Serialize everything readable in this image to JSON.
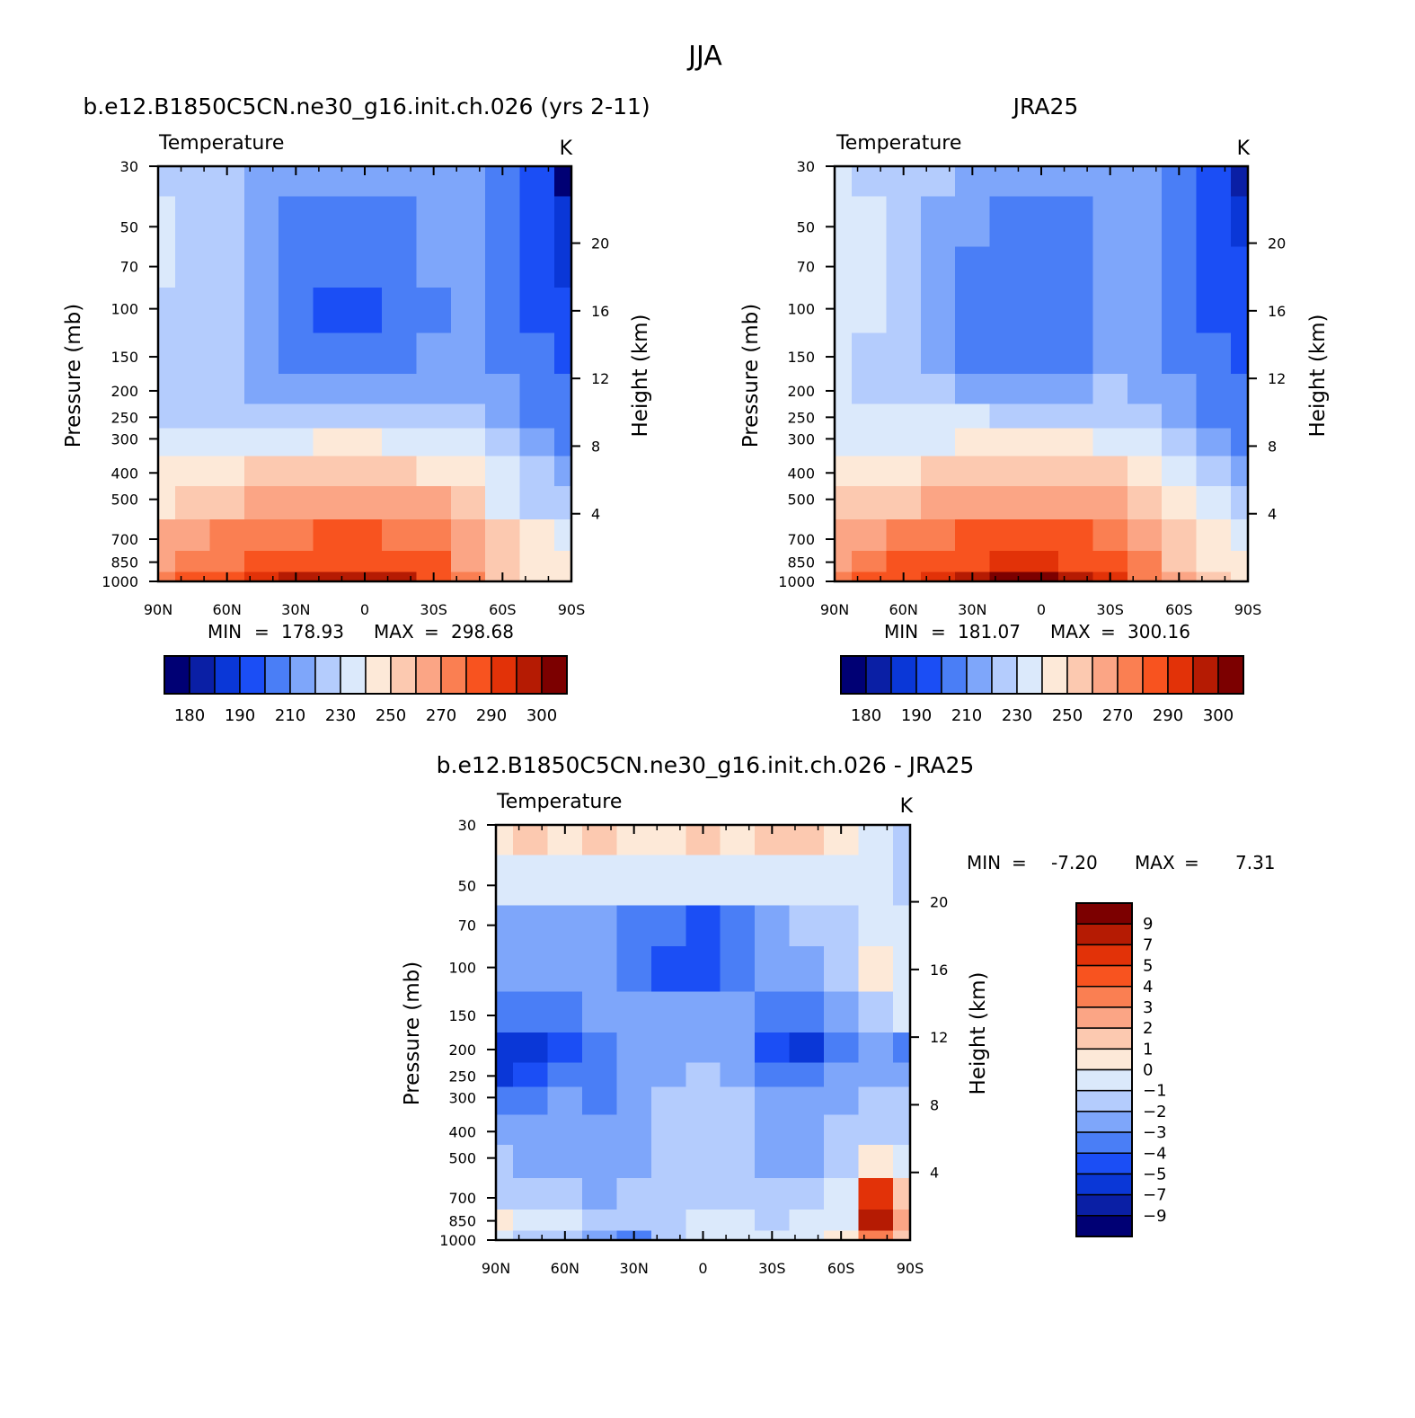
{
  "title": "JJA",
  "colors": {
    "temperature_scale": [
      "#000074",
      "#0a1fa5",
      "#0a37d7",
      "#1b4ef5",
      "#4a7ef6",
      "#7ea6fa",
      "#b4ccfd",
      "#dbe9fb",
      "#fde9d8",
      "#fcc9b0",
      "#fba585",
      "#fa7f52",
      "#f8531f",
      "#e23208",
      "#b51b03",
      "#7c0000"
    ],
    "difference_scale": [
      "#000074",
      "#0a1fa5",
      "#0a37d7",
      "#1b4ef5",
      "#4a7ef6",
      "#7ea6fa",
      "#b4ccfd",
      "#dbe9fb",
      "#fde9d8",
      "#fcc9b0",
      "#fba585",
      "#fa7f52",
      "#f8531f",
      "#e23208",
      "#b51b03",
      "#7c0000"
    ]
  },
  "panels": [
    {
      "id": "model",
      "subtitle": "b.e12.B1850C5CN.ne30_g16.init.ch.026 (yrs 2-11)",
      "left_label": "Temperature",
      "right_label": "K",
      "ylabel": "Pressure (mb)",
      "y2label": "Height (km)",
      "stats": {
        "min_label": "MIN",
        "min": "178.93",
        "max_label": "MAX",
        "max": "298.68"
      }
    },
    {
      "id": "obs",
      "subtitle": "JRA25",
      "left_label": "Temperature",
      "right_label": "K",
      "ylabel": "Pressure (mb)",
      "y2label": "Height (km)",
      "stats": {
        "min_label": "MIN",
        "min": "181.07",
        "max_label": "MAX",
        "max": "300.16"
      }
    },
    {
      "id": "diff",
      "subtitle": "b.e12.B1850C5CN.ne30_g16.init.ch.026 - JRA25",
      "left_label": "Temperature",
      "right_label": "K",
      "ylabel": "Pressure (mb)",
      "y2label": "Height (km)",
      "stats": {
        "min_label": "MIN",
        "min": "-7.20",
        "max_label": "MAX",
        "max": "7.31"
      }
    }
  ],
  "chart_data": [
    {
      "type": "heatmap",
      "title": "b.e12.B1850C5CN.ne30_g16.init.ch.026 (yrs 2-11)",
      "variable": "Temperature",
      "units": "K",
      "xlabel": "",
      "ylabel": "Pressure (mb)",
      "y2label": "Height (km)",
      "x_ticks": [
        "90N",
        "60N",
        "30N",
        "0",
        "30S",
        "60S",
        "90S"
      ],
      "x_lat_values": [
        90,
        60,
        30,
        0,
        -30,
        -60,
        -90
      ],
      "y_ticks": [
        30,
        50,
        70,
        100,
        150,
        200,
        250,
        300,
        400,
        500,
        700,
        850,
        1000
      ],
      "y_scale": "log",
      "ylim": [
        1000,
        30
      ],
      "y2_ticks": [
        4,
        8,
        12,
        16,
        20
      ],
      "contour_levels": [
        180,
        185,
        190,
        200,
        210,
        220,
        230,
        240,
        250,
        260,
        270,
        280,
        290,
        295,
        300
      ],
      "colorbar_labels": [
        "180",
        "190",
        "210",
        "230",
        "250",
        "270",
        "290",
        "300"
      ],
      "min": 178.93,
      "max": 298.68,
      "lat": [
        90,
        75,
        60,
        45,
        30,
        15,
        0,
        -15,
        -30,
        -45,
        -60,
        -75,
        -90
      ],
      "pressure": [
        30,
        50,
        70,
        100,
        150,
        200,
        250,
        300,
        400,
        500,
        700,
        850,
        1000
      ],
      "values": [
        [
          228,
          227,
          222,
          218,
          216,
          216,
          217,
          218,
          218,
          214,
          208,
          195,
          179
        ],
        [
          230,
          229,
          222,
          212,
          208,
          206,
          206,
          207,
          210,
          212,
          206,
          196,
          185
        ],
        [
          230,
          229,
          222,
          211,
          205,
          203,
          203,
          205,
          210,
          212,
          206,
          197,
          189
        ],
        [
          229,
          228,
          222,
          210,
          202,
          199,
          199,
          202,
          209,
          212,
          205,
          198,
          193
        ],
        [
          228,
          227,
          223,
          212,
          207,
          205,
          205,
          207,
          212,
          214,
          207,
          202,
          198
        ],
        [
          228,
          227,
          225,
          219,
          216,
          215,
          215,
          216,
          219,
          218,
          210,
          204,
          200
        ],
        [
          229,
          228,
          227,
          227,
          227,
          226,
          226,
          226,
          226,
          224,
          214,
          207,
          203
        ],
        [
          231,
          230,
          232,
          236,
          239,
          240,
          240,
          239,
          236,
          230,
          220,
          211,
          206
        ],
        [
          240,
          241,
          245,
          250,
          254,
          255,
          255,
          254,
          249,
          240,
          230,
          220,
          213
        ],
        [
          248,
          251,
          256,
          261,
          265,
          266,
          266,
          265,
          260,
          250,
          238,
          228,
          222
        ],
        [
          261,
          265,
          270,
          275,
          279,
          280,
          280,
          279,
          274,
          262,
          250,
          240,
          236
        ],
        [
          268,
          273,
          279,
          284,
          287,
          288,
          288,
          287,
          282,
          268,
          255,
          246,
          242
        ],
        [
          275,
          280,
          286,
          291,
          296,
          298,
          298,
          296,
          288,
          272,
          258,
          248,
          245
        ]
      ]
    },
    {
      "type": "heatmap",
      "title": "JRA25",
      "variable": "Temperature",
      "units": "K",
      "xlabel": "",
      "ylabel": "Pressure (mb)",
      "y2label": "Height (km)",
      "x_ticks": [
        "90N",
        "60N",
        "30N",
        "0",
        "30S",
        "60S",
        "90S"
      ],
      "x_lat_values": [
        90,
        60,
        30,
        0,
        -30,
        -60,
        -90
      ],
      "y_ticks": [
        30,
        50,
        70,
        100,
        150,
        200,
        250,
        300,
        400,
        500,
        700,
        850,
        1000
      ],
      "y_scale": "log",
      "ylim": [
        1000,
        30
      ],
      "y2_ticks": [
        4,
        8,
        12,
        16,
        20
      ],
      "contour_levels": [
        180,
        185,
        190,
        200,
        210,
        220,
        230,
        240,
        250,
        260,
        270,
        280,
        290,
        295,
        300
      ],
      "colorbar_labels": [
        "180",
        "190",
        "210",
        "230",
        "250",
        "270",
        "290",
        "300"
      ],
      "min": 181.07,
      "max": 300.16,
      "lat": [
        90,
        75,
        60,
        45,
        30,
        15,
        0,
        -15,
        -30,
        -45,
        -60,
        -75,
        -90
      ],
      "pressure": [
        30,
        50,
        70,
        100,
        150,
        200,
        250,
        300,
        400,
        500,
        700,
        850,
        1000
      ],
      "values": [
        [
          231,
          229,
          225,
          221,
          219,
          218,
          218,
          219,
          218,
          213,
          206,
          194,
          181
        ],
        [
          232,
          230,
          224,
          213,
          210,
          208,
          208,
          209,
          212,
          212,
          205,
          195,
          186
        ],
        [
          232,
          230,
          224,
          212,
          206,
          205,
          205,
          206,
          211,
          213,
          206,
          197,
          190
        ],
        [
          231,
          230,
          224,
          212,
          204,
          201,
          201,
          204,
          210,
          213,
          206,
          199,
          194
        ],
        [
          230,
          229,
          225,
          214,
          208,
          206,
          206,
          208,
          213,
          215,
          208,
          203,
          199
        ],
        [
          230,
          229,
          227,
          222,
          219,
          218,
          218,
          219,
          221,
          219,
          211,
          205,
          201
        ],
        [
          231,
          230,
          230,
          230,
          230,
          229,
          229,
          229,
          228,
          225,
          216,
          208,
          204
        ],
        [
          233,
          232,
          234,
          238,
          241,
          242,
          242,
          241,
          238,
          232,
          222,
          213,
          208
        ],
        [
          242,
          243,
          247,
          252,
          256,
          257,
          257,
          256,
          251,
          242,
          232,
          222,
          215
        ],
        [
          250,
          253,
          258,
          263,
          267,
          268,
          268,
          267,
          262,
          252,
          240,
          230,
          224
        ],
        [
          262,
          266,
          272,
          277,
          281,
          282,
          282,
          281,
          276,
          265,
          252,
          242,
          238
        ],
        [
          268,
          274,
          281,
          286,
          289,
          290,
          290,
          289,
          284,
          270,
          257,
          248,
          244
        ],
        [
          274,
          281,
          288,
          293,
          298,
          300,
          300,
          298,
          290,
          275,
          260,
          250,
          247
        ]
      ]
    },
    {
      "type": "heatmap",
      "title": "b.e12.B1850C5CN.ne30_g16.init.ch.026 - JRA25",
      "variable": "Temperature",
      "units": "K",
      "xlabel": "",
      "ylabel": "Pressure (mb)",
      "y2label": "Height (km)",
      "x_ticks": [
        "90N",
        "60N",
        "30N",
        "0",
        "30S",
        "60S",
        "90S"
      ],
      "x_lat_values": [
        90,
        60,
        30,
        0,
        -30,
        -60,
        -90
      ],
      "y_ticks": [
        30,
        50,
        70,
        100,
        150,
        200,
        250,
        300,
        400,
        500,
        700,
        850,
        1000
      ],
      "y_scale": "log",
      "ylim": [
        1000,
        30
      ],
      "y2_ticks": [
        4,
        8,
        12,
        16,
        20
      ],
      "contour_levels": [
        -9,
        -7,
        -5,
        -4,
        -3,
        -2,
        -1,
        0,
        1,
        2,
        3,
        4,
        5,
        7,
        9
      ],
      "colorbar_labels": [
        "9",
        "7",
        "5",
        "4",
        "3",
        "2",
        "1",
        "0",
        "-1",
        "-2",
        "-3",
        "-4",
        "-5",
        "-7",
        "-9"
      ],
      "min": -7.2,
      "max": 7.31,
      "lat": [
        90,
        75,
        60,
        45,
        30,
        15,
        0,
        -15,
        -30,
        -45,
        -60,
        -75,
        -90
      ],
      "pressure": [
        30,
        50,
        70,
        100,
        150,
        200,
        250,
        300,
        400,
        500,
        700,
        850,
        1000
      ],
      "values": [
        [
          0.8,
          1.5,
          0.6,
          1.5,
          0.6,
          0.5,
          1.8,
          0.5,
          1.0,
          1.6,
          0.8,
          -0.5,
          -2.0
        ],
        [
          -0.7,
          -0.6,
          -0.8,
          -0.6,
          -0.7,
          -0.8,
          -0.7,
          -0.6,
          -0.8,
          -0.7,
          -0.5,
          -0.6,
          -1.2
        ],
        [
          -2.2,
          -2.4,
          -2.3,
          -2.5,
          -3.2,
          -4.0,
          -4.5,
          -3.3,
          -2.2,
          -2.0,
          -1.6,
          -0.8,
          -1.0
        ],
        [
          -2.5,
          -2.6,
          -2.4,
          -2.8,
          -3.6,
          -4.2,
          -5.0,
          -3.6,
          -2.5,
          -2.2,
          -1.8,
          0.3,
          -0.6
        ],
        [
          -3.2,
          -3.4,
          -3.1,
          -2.7,
          -2.6,
          -2.7,
          -2.5,
          -2.6,
          -3.1,
          -3.6,
          -3.0,
          -1.5,
          -1.0
        ],
        [
          -6.0,
          -5.5,
          -4.2,
          -3.5,
          -3.0,
          -2.5,
          -2.6,
          -3.0,
          -4.2,
          -5.4,
          -4.0,
          -2.8,
          -3.4
        ],
        [
          -6.2,
          -5.0,
          -4.0,
          -3.6,
          -3.0,
          -2.2,
          -2.0,
          -2.2,
          -3.4,
          -3.8,
          -3.0,
          -2.5,
          -2.6
        ],
        [
          -3.5,
          -3.2,
          -3.0,
          -3.3,
          -2.8,
          -2.0,
          -1.8,
          -2.0,
          -2.6,
          -2.4,
          -2.2,
          -2.0,
          -1.8
        ],
        [
          -2.5,
          -2.4,
          -2.6,
          -3.0,
          -2.5,
          -1.8,
          -1.5,
          -1.8,
          -2.4,
          -2.2,
          -2.0,
          -1.4,
          -1.2
        ],
        [
          -2.0,
          -2.2,
          -2.3,
          -2.8,
          -2.6,
          -1.9,
          -1.6,
          -1.8,
          -2.3,
          -2.1,
          -1.6,
          0.5,
          -1.0
        ],
        [
          -1.2,
          -1.5,
          -1.8,
          -2.2,
          -2.0,
          -1.6,
          -1.4,
          -1.6,
          -1.9,
          -1.7,
          -1.0,
          5.0,
          1.5
        ],
        [
          0.4,
          -1.0,
          -0.8,
          -1.2,
          -1.8,
          -1.2,
          -0.9,
          -1.0,
          -1.3,
          -0.9,
          -0.2,
          7.3,
          2.0
        ],
        [
          -1.0,
          -1.5,
          -2.0,
          -3.0,
          -4.0,
          -1.8,
          -0.8,
          -0.8,
          -0.9,
          -0.5,
          0.0,
          3.0,
          1.0
        ]
      ]
    }
  ]
}
